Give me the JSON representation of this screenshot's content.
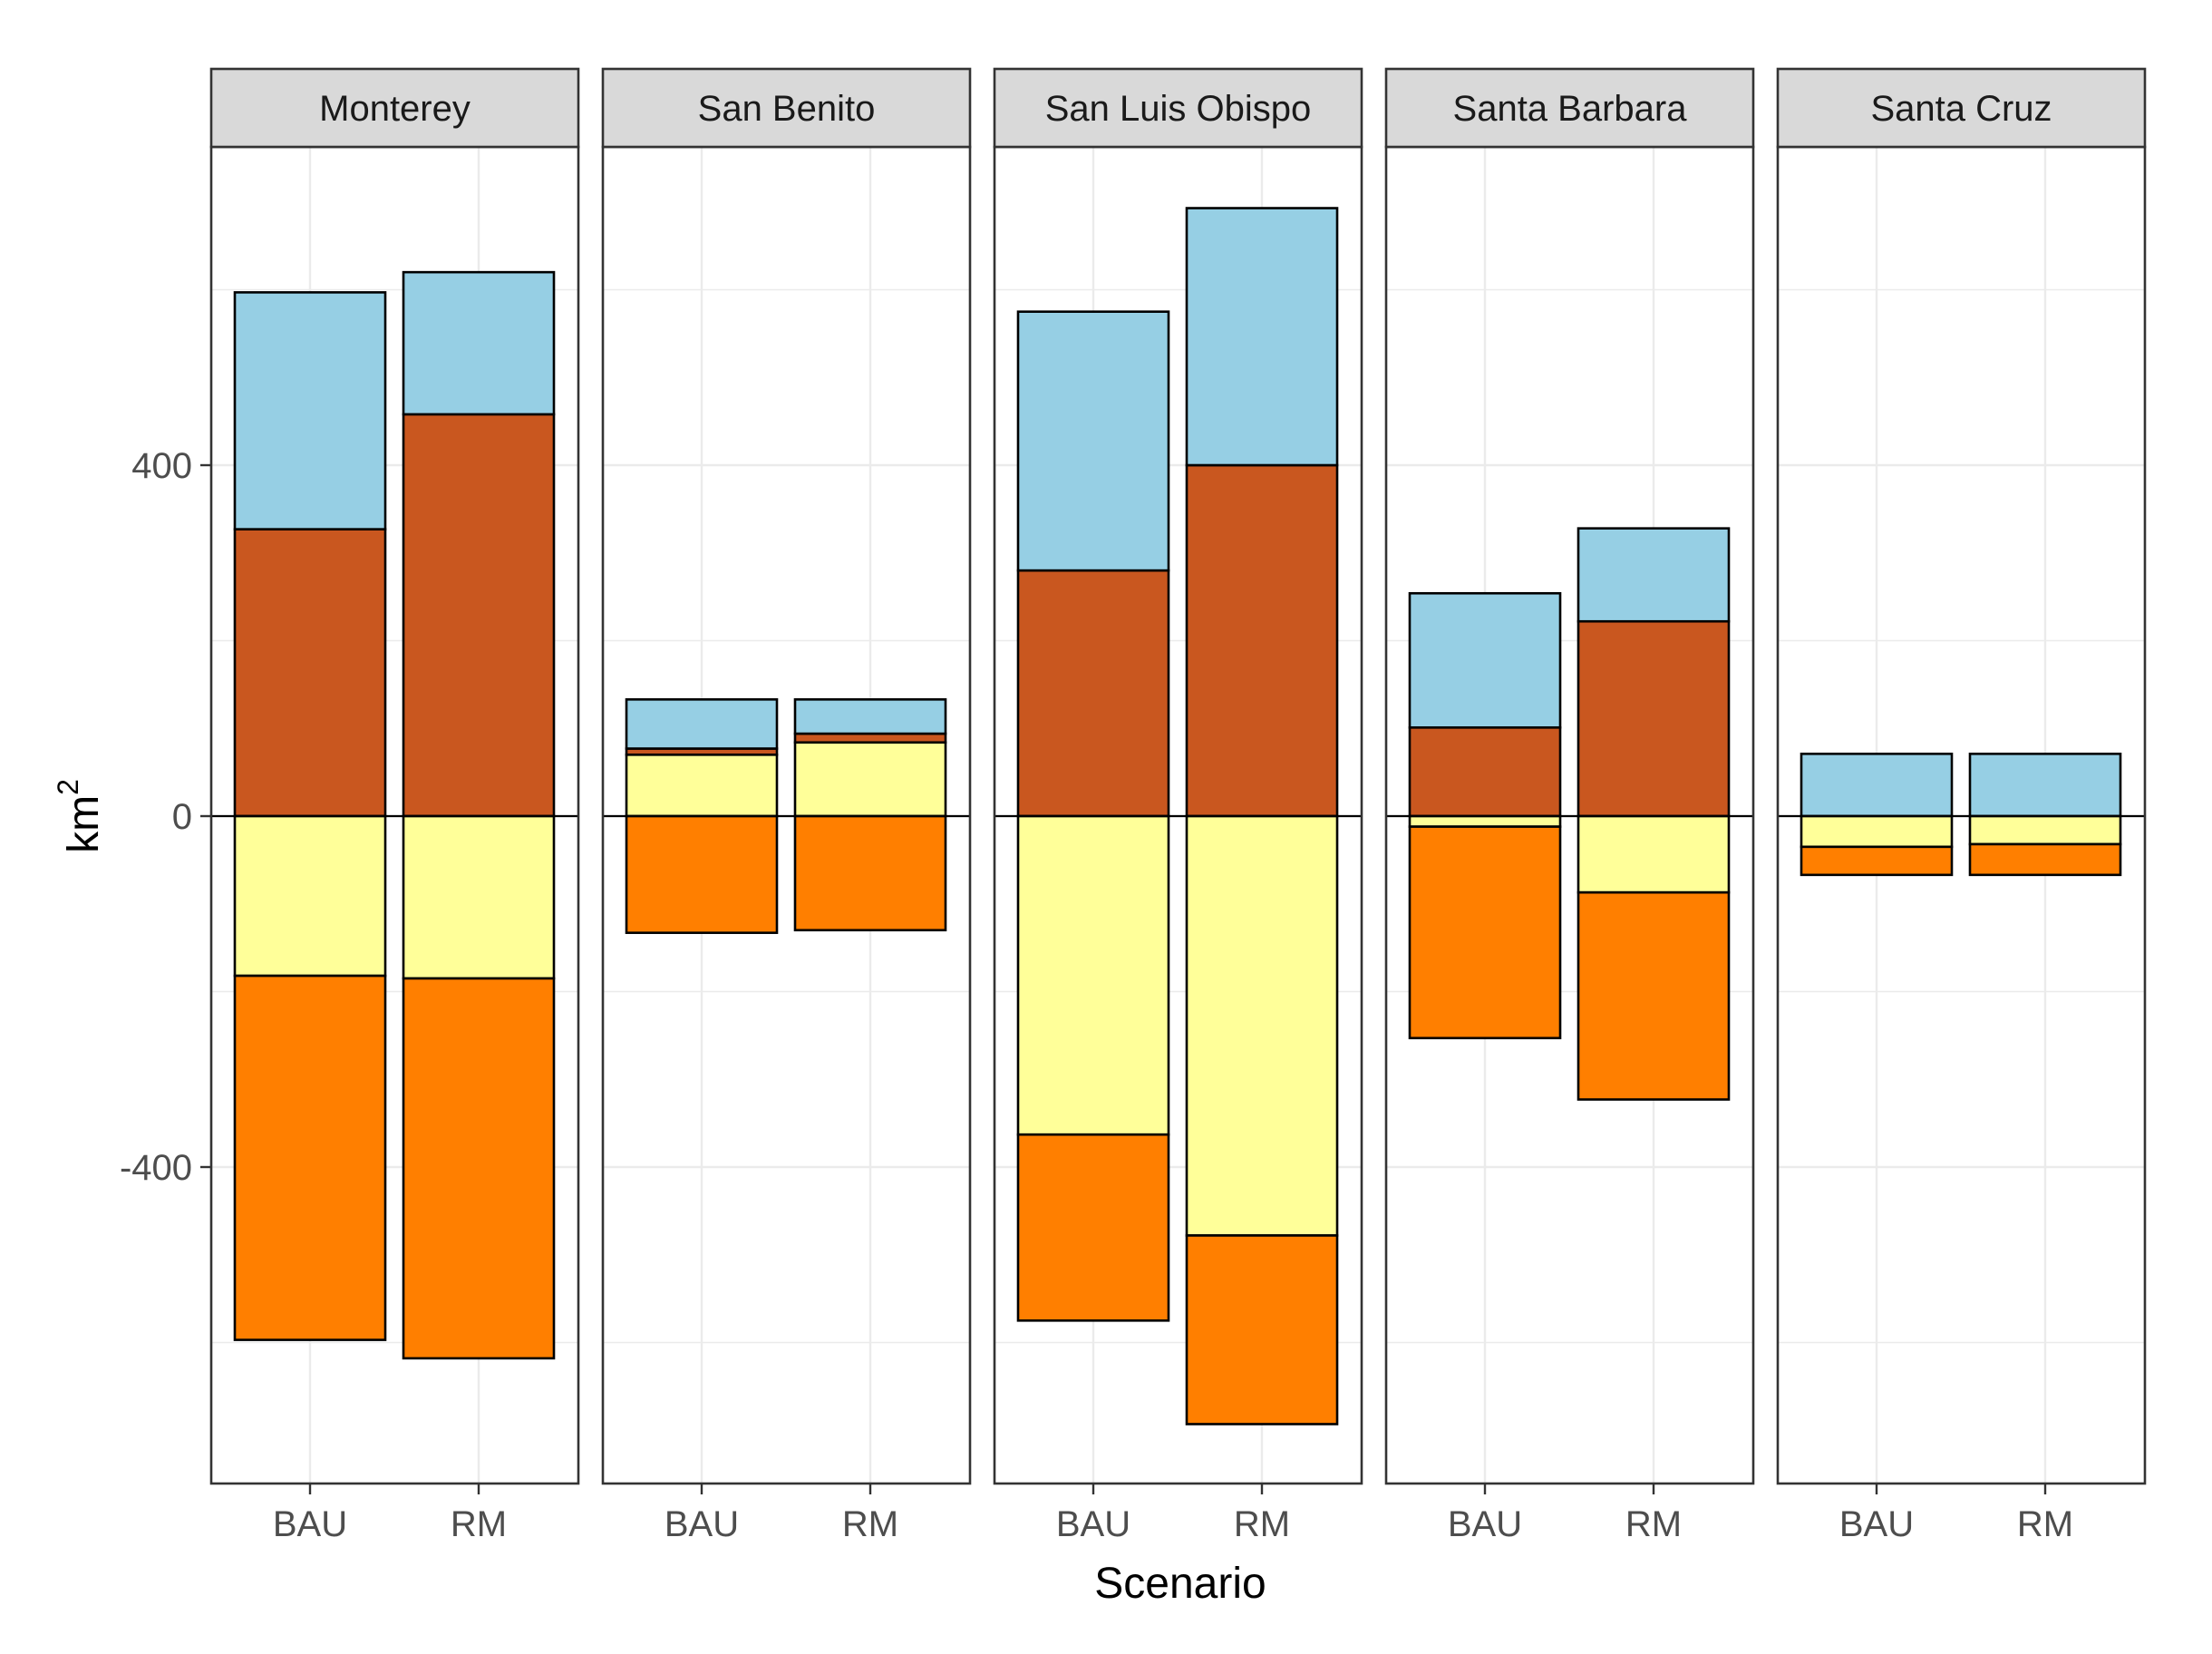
{
  "chart_data": {
    "type": "bar",
    "subtype": "stacked-diverging-faceted",
    "xlabel": "Scenario",
    "ylabel_base": "km",
    "ylabel_superscript": "2",
    "y_ticks": [
      -400,
      0,
      400
    ],
    "y_ticks_text": [
      "-400",
      "0",
      "400"
    ],
    "ylim": [
      -760,
      760
    ],
    "grid": true,
    "categories": [
      "BAU",
      "RM"
    ],
    "colors": {
      "light-blue": "#96CFE4",
      "rust": "#C9571F",
      "pale-yellow": "#FFFF99",
      "orange": "#FF7F00"
    },
    "facets": [
      {
        "name": "Monterey",
        "bars": [
          {
            "category": "BAU",
            "segments": [
              {
                "color": "rust",
                "from": 0,
                "to": 327
              },
              {
                "color": "light-blue",
                "from": 327,
                "to": 597
              },
              {
                "color": "pale-yellow",
                "from": 0,
                "to": -182
              },
              {
                "color": "orange",
                "from": -182,
                "to": -597
              }
            ]
          },
          {
            "category": "RM",
            "segments": [
              {
                "color": "rust",
                "from": 0,
                "to": 458
              },
              {
                "color": "light-blue",
                "from": 458,
                "to": 620
              },
              {
                "color": "pale-yellow",
                "from": 0,
                "to": -185
              },
              {
                "color": "orange",
                "from": -185,
                "to": -618
              }
            ]
          }
        ]
      },
      {
        "name": "San Benito",
        "bars": [
          {
            "category": "BAU",
            "segments": [
              {
                "color": "pale-yellow",
                "from": 0,
                "to": 70
              },
              {
                "color": "rust",
                "from": 70,
                "to": 77
              },
              {
                "color": "light-blue",
                "from": 77,
                "to": 133
              },
              {
                "color": "orange",
                "from": 0,
                "to": -133
              }
            ]
          },
          {
            "category": "RM",
            "segments": [
              {
                "color": "pale-yellow",
                "from": 0,
                "to": 84
              },
              {
                "color": "rust",
                "from": 84,
                "to": 94
              },
              {
                "color": "light-blue",
                "from": 94,
                "to": 133
              },
              {
                "color": "orange",
                "from": 0,
                "to": -130
              }
            ]
          }
        ]
      },
      {
        "name": "San Luis Obispo",
        "bars": [
          {
            "category": "BAU",
            "segments": [
              {
                "color": "rust",
                "from": 0,
                "to": 280
              },
              {
                "color": "light-blue",
                "from": 280,
                "to": 575
              },
              {
                "color": "pale-yellow",
                "from": 0,
                "to": -363
              },
              {
                "color": "orange",
                "from": -363,
                "to": -575
              }
            ]
          },
          {
            "category": "RM",
            "segments": [
              {
                "color": "rust",
                "from": 0,
                "to": 400
              },
              {
                "color": "light-blue",
                "from": 400,
                "to": 693
              },
              {
                "color": "pale-yellow",
                "from": 0,
                "to": -478
              },
              {
                "color": "orange",
                "from": -478,
                "to": -693
              }
            ]
          }
        ]
      },
      {
        "name": "Santa Barbara",
        "bars": [
          {
            "category": "BAU",
            "segments": [
              {
                "color": "rust",
                "from": 0,
                "to": 101
              },
              {
                "color": "light-blue",
                "from": 101,
                "to": 254
              },
              {
                "color": "pale-yellow",
                "from": 0,
                "to": -12
              },
              {
                "color": "orange",
                "from": -12,
                "to": -253
              }
            ]
          },
          {
            "category": "RM",
            "segments": [
              {
                "color": "rust",
                "from": 0,
                "to": 222
              },
              {
                "color": "light-blue",
                "from": 222,
                "to": 328
              },
              {
                "color": "pale-yellow",
                "from": 0,
                "to": -87
              },
              {
                "color": "orange",
                "from": -87,
                "to": -323
              }
            ]
          }
        ]
      },
      {
        "name": "Santa Cruz",
        "bars": [
          {
            "category": "BAU",
            "segments": [
              {
                "color": "light-blue",
                "from": 0,
                "to": 71
              },
              {
                "color": "pale-yellow",
                "from": 0,
                "to": -35
              },
              {
                "color": "orange",
                "from": -35,
                "to": -67
              }
            ]
          },
          {
            "category": "RM",
            "segments": [
              {
                "color": "light-blue",
                "from": 0,
                "to": 71
              },
              {
                "color": "pale-yellow",
                "from": 0,
                "to": -32
              },
              {
                "color": "orange",
                "from": -32,
                "to": -67
              }
            ]
          }
        ]
      }
    ]
  }
}
